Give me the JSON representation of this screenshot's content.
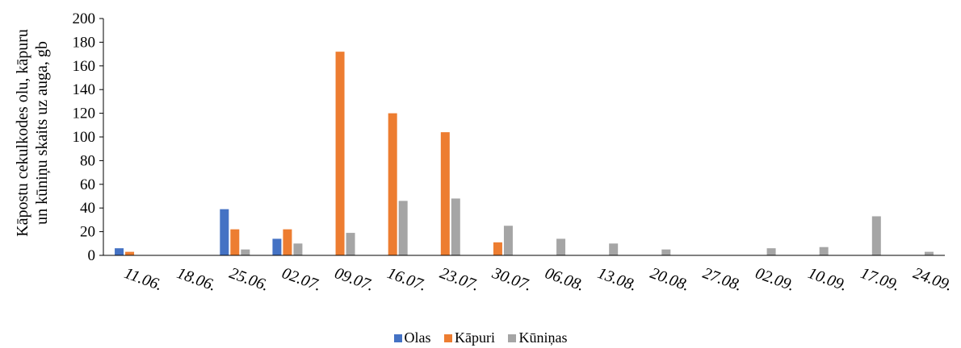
{
  "chart_data": {
    "type": "bar",
    "ylabel_lines": [
      "Kāpostu cekulkodes olu, kāpuru",
      "un kūniņu skaits uz auga, gb"
    ],
    "categories": [
      "11.06.",
      "18.06.",
      "25.06.",
      "02.07.",
      "09.07.",
      "16.07.",
      "23.07.",
      "30.07.",
      "06.08.",
      "13.08.",
      "20.08.",
      "27.08.",
      "02.09.",
      "10.09.",
      "17.09.",
      "24.09."
    ],
    "y_ticks": [
      "0",
      "20",
      "40",
      "60",
      "80",
      "100",
      "120",
      "140",
      "160",
      "180",
      "200"
    ],
    "ylim": [
      0,
      200
    ],
    "grid": false,
    "legend_position": "bottom",
    "series": [
      {
        "name": "Olas",
        "color": "#4472C4",
        "values": [
          6,
          0,
          39,
          14,
          0,
          0,
          0,
          0,
          0,
          0,
          0,
          0,
          0,
          0,
          0,
          0
        ]
      },
      {
        "name": "Kāpuri",
        "color": "#ED7D31",
        "values": [
          3,
          0,
          22,
          22,
          172,
          120,
          104,
          11,
          0,
          0,
          0,
          0,
          0,
          0,
          0,
          0
        ]
      },
      {
        "name": "Kūniņas",
        "color": "#A5A5A5",
        "values": [
          0,
          0,
          5,
          10,
          19,
          46,
          48,
          25,
          14,
          10,
          5,
          0,
          6,
          7,
          33,
          3
        ]
      }
    ]
  }
}
